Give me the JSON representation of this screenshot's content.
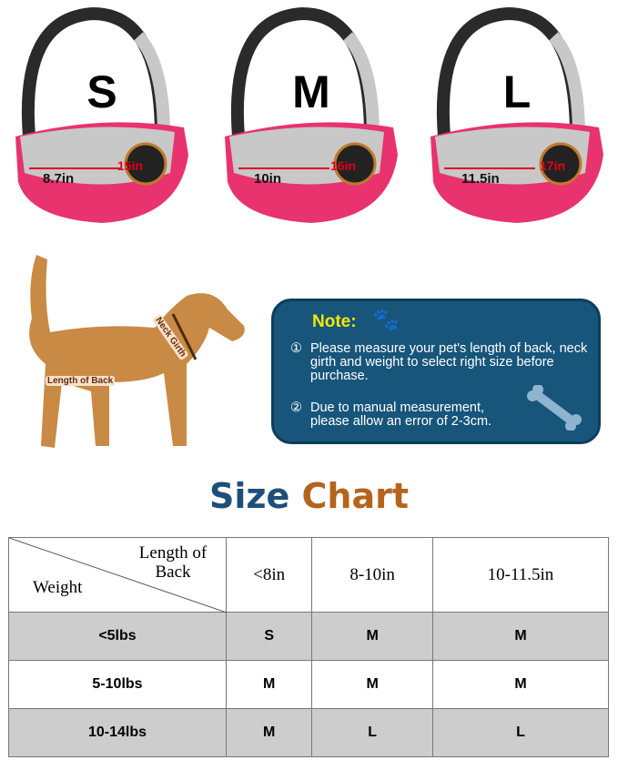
{
  "bags": [
    {
      "size": "S",
      "length": "8.7in",
      "neck": "15in"
    },
    {
      "size": "M",
      "length": "10in",
      "neck": "16in"
    },
    {
      "size": "L",
      "length": "11.5in",
      "neck": "17in"
    }
  ],
  "dog_labels": {
    "back": "Length of Back",
    "neck": "Neck Girth"
  },
  "note": {
    "title": "Note:",
    "items": [
      {
        "num": "①",
        "text": "Please measure your pet's length of back, neck girth and weight to select right size before purchase."
      },
      {
        "num": "②",
        "text": "Due to manual measurement, please allow an error of 2-3cm."
      }
    ]
  },
  "heading": {
    "part1": "Size",
    "part2": "Chart"
  },
  "colors": {
    "bag_pink": "#e8336f",
    "mesh_gray": "#c8c8c8",
    "note_bg": "#17557a",
    "note_title": "#f5e900",
    "heading_blue": "#1d4f79",
    "heading_brown": "#b5641d"
  },
  "table": {
    "corner_top": "Length of Back",
    "corner_bottom": "Weight",
    "columns": [
      "<8in",
      "8-10in",
      "10-11.5in"
    ],
    "rows": [
      {
        "label": "<5lbs",
        "values": [
          "S",
          "M",
          "M"
        ]
      },
      {
        "label": "5-10lbs",
        "values": [
          "M",
          "M",
          "M"
        ]
      },
      {
        "label": "10-14lbs",
        "values": [
          "M",
          "L",
          "L"
        ]
      }
    ]
  }
}
